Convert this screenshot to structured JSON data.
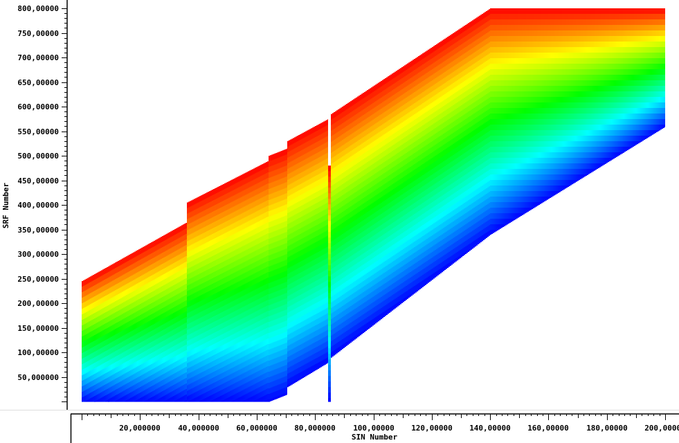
{
  "chart_data": {
    "type": "heatmap",
    "title": "",
    "xlabel": "SIN Number",
    "ylabel": "SRF Number",
    "xlim": [
      0,
      200
    ],
    "ylim": [
      0,
      800
    ],
    "x_ticks": [
      20,
      40,
      60,
      80,
      100,
      120,
      140,
      160,
      180,
      200
    ],
    "y_ticks": [
      50,
      100,
      150,
      200,
      250,
      300,
      350,
      400,
      450,
      500,
      550,
      600,
      650,
      700,
      750,
      800
    ],
    "x_tick_labels": [
      "20,000000",
      "40,000000",
      "60,000000",
      "80,000000",
      "100,00000",
      "120,00000",
      "140,00000",
      "160,00000",
      "180,00000",
      "200,00000"
    ],
    "y_tick_labels": [
      "50,000000",
      "100,00000",
      "150,00000",
      "200,00000",
      "250,00000",
      "300,00000",
      "350,00000",
      "400,00000",
      "450,00000",
      "500,00000",
      "550,00000",
      "600,00000",
      "650,00000",
      "700,00000",
      "750,00000",
      "800,00000"
    ],
    "colormap": [
      "#0000ff",
      "#00ffff",
      "#00ff00",
      "#ffff00",
      "#ff0000"
    ],
    "grid": false,
    "regions": [
      {
        "x": [
          0,
          36
        ],
        "y_bottom": [
          0,
          0
        ],
        "y_top": [
          245,
          365
        ],
        "color_min": [
          0,
          0
        ],
        "color_max": [
          245,
          365
        ]
      },
      {
        "x": [
          36,
          64
        ],
        "y_bottom": [
          0,
          0
        ],
        "y_top": [
          405,
          490
        ],
        "color_min": [
          0,
          0
        ],
        "color_max": [
          405,
          490
        ]
      },
      {
        "x": [
          64,
          70.5
        ],
        "y_bottom": [
          0,
          15
        ],
        "y_top": [
          500,
          515
        ],
        "color_min": [
          0,
          15
        ],
        "color_max": [
          500,
          515
        ]
      },
      {
        "x": [
          70.5,
          84.5
        ],
        "y_bottom": [
          30,
          80
        ],
        "y_top": [
          530,
          575
        ],
        "color_min": [
          30,
          80
        ],
        "color_max": [
          530,
          575
        ]
      },
      {
        "x": [
          84.5,
          85.5
        ],
        "y_bottom": [
          0,
          0
        ],
        "y_top": [
          480,
          480
        ],
        "color_min": [
          0,
          0
        ],
        "color_max": [
          480,
          480
        ]
      },
      {
        "x": [
          85.5,
          140
        ],
        "y_bottom": [
          90,
          340
        ],
        "y_top": [
          585,
          800
        ],
        "color_min": [
          90,
          340
        ],
        "color_max": [
          585,
          800
        ]
      },
      {
        "x": [
          140,
          200
        ],
        "y_bottom": [
          340,
          560
        ],
        "y_top": [
          800,
          800
        ],
        "color_min": [
          340,
          560
        ],
        "color_max": [
          800,
          800
        ]
      }
    ]
  }
}
